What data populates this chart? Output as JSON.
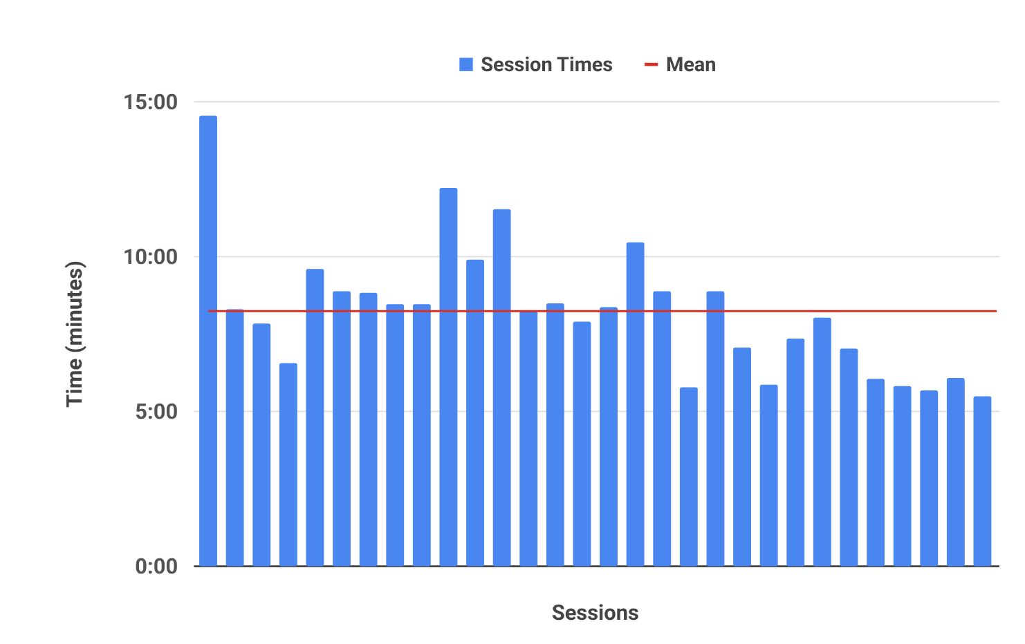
{
  "chart_data": {
    "type": "bar",
    "xlabel": "Sessions",
    "ylabel": "Time (minutes)",
    "categories": [
      null,
      null,
      null,
      null,
      null,
      null,
      null,
      null,
      null,
      null,
      null,
      null,
      null,
      null,
      null,
      null,
      null,
      null,
      null,
      null,
      null,
      null,
      null,
      null,
      null,
      null,
      null,
      null,
      null,
      null
    ],
    "series": [
      {
        "name": "Session Times",
        "color": "#4a86f0",
        "values": [
          14.55,
          8.3,
          7.84,
          6.56,
          9.6,
          8.88,
          8.83,
          8.46,
          8.46,
          12.22,
          9.9,
          11.53,
          8.24,
          8.49,
          7.9,
          8.37,
          10.46,
          8.88,
          5.78,
          8.88,
          7.06,
          5.86,
          7.35,
          8.03,
          7.03,
          6.05,
          5.82,
          5.68,
          6.08,
          5.49
        ]
      }
    ],
    "ylim": [
      0,
      15
    ],
    "yticks": [
      {
        "value": 0,
        "label": "0:00"
      },
      {
        "value": 5,
        "label": "5:00"
      },
      {
        "value": 10,
        "label": "10:00"
      },
      {
        "value": 15,
        "label": "15:00"
      }
    ],
    "ref_lines": [
      {
        "axis": "y",
        "value": 8.24,
        "label": "Mean",
        "color": "#d93025"
      }
    ],
    "grid": "y",
    "legend": "top"
  }
}
